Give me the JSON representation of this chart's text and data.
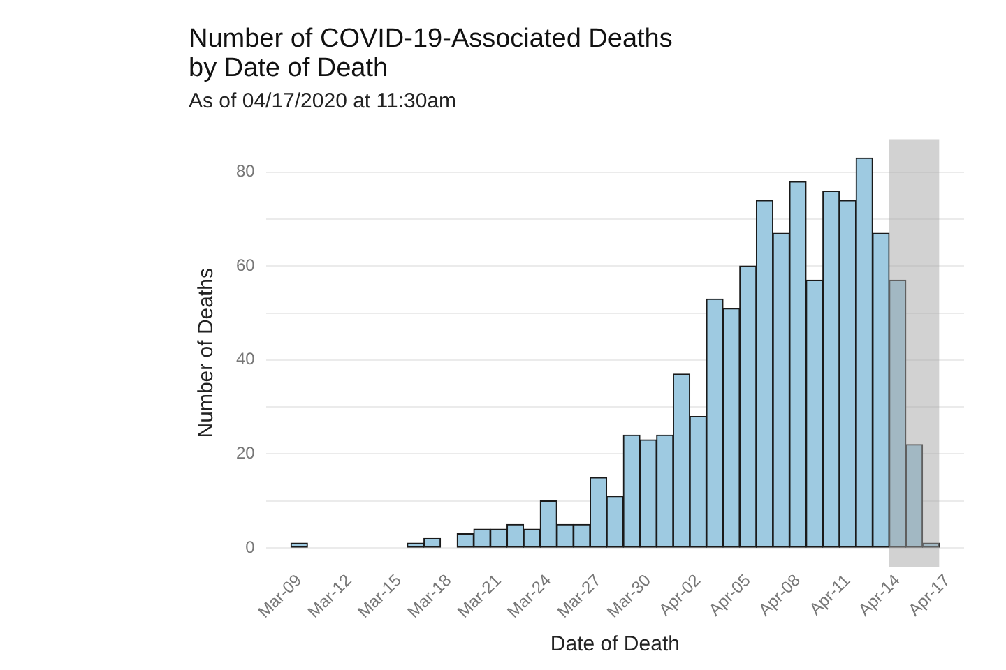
{
  "chart_data": {
    "type": "bar",
    "title": "Number of COVID-19-Associated Deaths\nby Date of Death",
    "subtitle": "As of 04/17/2020 at 11:30am",
    "xlabel": "Date of Death",
    "ylabel": "Number of Deaths",
    "x": [
      "2020-03-09",
      "2020-03-10",
      "2020-03-11",
      "2020-03-12",
      "2020-03-13",
      "2020-03-14",
      "2020-03-15",
      "2020-03-16",
      "2020-03-17",
      "2020-03-18",
      "2020-03-19",
      "2020-03-20",
      "2020-03-21",
      "2020-03-22",
      "2020-03-23",
      "2020-03-24",
      "2020-03-25",
      "2020-03-26",
      "2020-03-27",
      "2020-03-28",
      "2020-03-29",
      "2020-03-30",
      "2020-03-31",
      "2020-04-01",
      "2020-04-02",
      "2020-04-03",
      "2020-04-04",
      "2020-04-05",
      "2020-04-06",
      "2020-04-07",
      "2020-04-08",
      "2020-04-09",
      "2020-04-10",
      "2020-04-11",
      "2020-04-12",
      "2020-04-13",
      "2020-04-14",
      "2020-04-15",
      "2020-04-16"
    ],
    "values": [
      1,
      0,
      0,
      0,
      0,
      0,
      0,
      1,
      2,
      0,
      3,
      4,
      4,
      5,
      4,
      10,
      5,
      5,
      15,
      11,
      24,
      23,
      24,
      37,
      28,
      53,
      51,
      60,
      74,
      67,
      78,
      57,
      76,
      74,
      83,
      67,
      57,
      22,
      1
    ],
    "color": "#9ecae1",
    "xlim": [
      "2020-03-07",
      "2020-04-18"
    ],
    "xticks": [
      {
        "value": "2020-03-09",
        "label": "Mar-09"
      },
      {
        "value": "2020-03-12",
        "label": "Mar-12"
      },
      {
        "value": "2020-03-15",
        "label": "Mar-15"
      },
      {
        "value": "2020-03-18",
        "label": "Mar-18"
      },
      {
        "value": "2020-03-21",
        "label": "Mar-21"
      },
      {
        "value": "2020-03-24",
        "label": "Mar-24"
      },
      {
        "value": "2020-03-27",
        "label": "Mar-27"
      },
      {
        "value": "2020-03-30",
        "label": "Mar-30"
      },
      {
        "value": "2020-04-02",
        "label": "Apr-02"
      },
      {
        "value": "2020-04-05",
        "label": "Apr-05"
      },
      {
        "value": "2020-04-08",
        "label": "Apr-08"
      },
      {
        "value": "2020-04-11",
        "label": "Apr-11"
      },
      {
        "value": "2020-04-14",
        "label": "Apr-14"
      },
      {
        "value": "2020-04-17",
        "label": "Apr-17"
      }
    ],
    "ylim": [
      -4,
      87
    ],
    "yticks": [
      0,
      {
        "value": 10,
        "label": null
      },
      20,
      {
        "value": 30,
        "label": null
      },
      40,
      {
        "value": 50,
        "label": null
      },
      60,
      {
        "value": 70,
        "label": null
      },
      80
    ],
    "bands": [
      {
        "axis": "x",
        "from": "2020-04-13T12:00",
        "to": "2020-04-16T12:00",
        "color": "#a6a6a6"
      }
    ],
    "grid": "y"
  }
}
